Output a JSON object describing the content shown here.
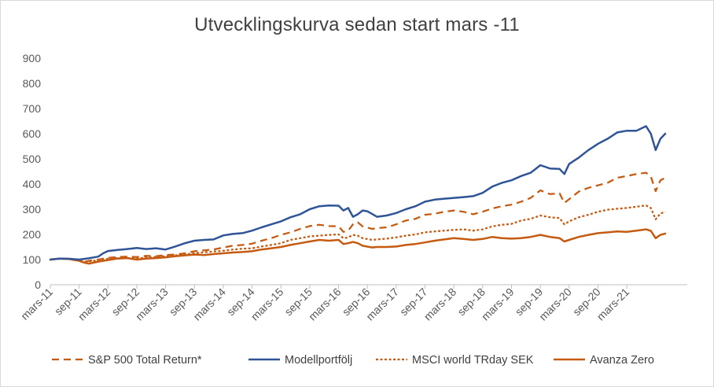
{
  "chart_data": {
    "type": "line",
    "title": "Utvecklingskurva sedan start mars -11",
    "xlabel": "",
    "ylabel": "",
    "ylim": [
      0,
      900
    ],
    "yticks": [
      0,
      100,
      200,
      300,
      400,
      500,
      600,
      700,
      800,
      900
    ],
    "grid": false,
    "legend_position": "bottom",
    "x_tick_labels": [
      "mars-11",
      "sep-11",
      "mars-12",
      "sep-12",
      "mars-13",
      "sep-13",
      "mars-14",
      "sep-14",
      "mars-15",
      "sep-15",
      "mars-16",
      "sep-16",
      "mars-17",
      "sep-17",
      "mars-18",
      "sep-18",
      "mars-19",
      "sep-19",
      "mars-20",
      "sep-20",
      "mars-21"
    ],
    "x_range_months": [
      0,
      128
    ],
    "series": [
      {
        "name": "S&P 500 Total Return*",
        "color": "#c55a11",
        "style": "dashed",
        "points": [
          [
            0,
            100
          ],
          [
            2,
            104
          ],
          [
            4,
            103
          ],
          [
            6,
            97
          ],
          [
            7,
            90
          ],
          [
            8,
            95
          ],
          [
            10,
            100
          ],
          [
            12,
            107
          ],
          [
            14,
            110
          ],
          [
            16,
            112
          ],
          [
            18,
            110
          ],
          [
            20,
            115
          ],
          [
            22,
            113
          ],
          [
            24,
            118
          ],
          [
            26,
            120
          ],
          [
            28,
            125
          ],
          [
            30,
            133
          ],
          [
            32,
            137
          ],
          [
            34,
            140
          ],
          [
            36,
            148
          ],
          [
            38,
            155
          ],
          [
            40,
            158
          ],
          [
            42,
            163
          ],
          [
            44,
            175
          ],
          [
            46,
            185
          ],
          [
            48,
            198
          ],
          [
            50,
            208
          ],
          [
            52,
            222
          ],
          [
            54,
            233
          ],
          [
            56,
            238
          ],
          [
            58,
            233
          ],
          [
            60,
            232
          ],
          [
            61,
            210
          ],
          [
            62,
            215
          ],
          [
            63,
            240
          ],
          [
            64,
            248
          ],
          [
            65,
            232
          ],
          [
            67,
            222
          ],
          [
            68,
            225
          ],
          [
            70,
            228
          ],
          [
            72,
            240
          ],
          [
            74,
            255
          ],
          [
            76,
            262
          ],
          [
            78,
            278
          ],
          [
            80,
            282
          ],
          [
            82,
            290
          ],
          [
            84,
            295
          ],
          [
            86,
            290
          ],
          [
            88,
            280
          ],
          [
            90,
            290
          ],
          [
            92,
            303
          ],
          [
            94,
            312
          ],
          [
            96,
            318
          ],
          [
            98,
            330
          ],
          [
            100,
            345
          ],
          [
            102,
            375
          ],
          [
            104,
            360
          ],
          [
            106,
            363
          ],
          [
            107,
            325
          ],
          [
            108,
            340
          ],
          [
            110,
            370
          ],
          [
            112,
            385
          ],
          [
            114,
            395
          ],
          [
            116,
            405
          ],
          [
            118,
            425
          ],
          [
            120,
            432
          ],
          [
            122,
            440
          ],
          [
            124,
            445
          ],
          [
            125,
            430
          ],
          [
            126,
            372
          ],
          [
            127,
            415
          ],
          [
            128,
            425
          ]
        ]
      },
      {
        "name": "Modellportfölj",
        "color": "#2f5597",
        "style": "solid",
        "points": [
          [
            0,
            100
          ],
          [
            2,
            104
          ],
          [
            4,
            103
          ],
          [
            6,
            100
          ],
          [
            8,
            105
          ],
          [
            10,
            112
          ],
          [
            11,
            125
          ],
          [
            12,
            134
          ],
          [
            14,
            138
          ],
          [
            16,
            142
          ],
          [
            18,
            146
          ],
          [
            20,
            142
          ],
          [
            22,
            145
          ],
          [
            24,
            140
          ],
          [
            26,
            152
          ],
          [
            28,
            165
          ],
          [
            30,
            175
          ],
          [
            32,
            178
          ],
          [
            34,
            180
          ],
          [
            36,
            196
          ],
          [
            38,
            202
          ],
          [
            40,
            205
          ],
          [
            42,
            215
          ],
          [
            44,
            228
          ],
          [
            46,
            240
          ],
          [
            48,
            252
          ],
          [
            50,
            268
          ],
          [
            52,
            280
          ],
          [
            54,
            300
          ],
          [
            56,
            312
          ],
          [
            58,
            315
          ],
          [
            60,
            314
          ],
          [
            61,
            295
          ],
          [
            62,
            305
          ],
          [
            63,
            270
          ],
          [
            64,
            280
          ],
          [
            65,
            295
          ],
          [
            66,
            292
          ],
          [
            68,
            270
          ],
          [
            70,
            275
          ],
          [
            72,
            285
          ],
          [
            74,
            300
          ],
          [
            76,
            312
          ],
          [
            78,
            330
          ],
          [
            80,
            338
          ],
          [
            82,
            342
          ],
          [
            84,
            345
          ],
          [
            86,
            348
          ],
          [
            88,
            352
          ],
          [
            90,
            365
          ],
          [
            92,
            390
          ],
          [
            94,
            405
          ],
          [
            96,
            415
          ],
          [
            98,
            432
          ],
          [
            100,
            445
          ],
          [
            102,
            475
          ],
          [
            104,
            462
          ],
          [
            106,
            460
          ],
          [
            107,
            440
          ],
          [
            108,
            480
          ],
          [
            110,
            505
          ],
          [
            112,
            535
          ],
          [
            114,
            560
          ],
          [
            116,
            580
          ],
          [
            118,
            605
          ],
          [
            120,
            612
          ],
          [
            122,
            612
          ],
          [
            124,
            630
          ],
          [
            125,
            600
          ],
          [
            126,
            535
          ],
          [
            127,
            580
          ],
          [
            128,
            600
          ]
        ]
      },
      {
        "name": "MSCI world TRday SEK",
        "color": "#c55a11",
        "style": "dotted",
        "points": [
          [
            0,
            100
          ],
          [
            2,
            104
          ],
          [
            4,
            102
          ],
          [
            6,
            96
          ],
          [
            7,
            92
          ],
          [
            8,
            93
          ],
          [
            10,
            97
          ],
          [
            12,
            103
          ],
          [
            14,
            106
          ],
          [
            16,
            105
          ],
          [
            18,
            104
          ],
          [
            20,
            108
          ],
          [
            22,
            110
          ],
          [
            24,
            113
          ],
          [
            26,
            117
          ],
          [
            28,
            120
          ],
          [
            30,
            125
          ],
          [
            32,
            129
          ],
          [
            34,
            132
          ],
          [
            36,
            135
          ],
          [
            38,
            140
          ],
          [
            40,
            143
          ],
          [
            42,
            145
          ],
          [
            44,
            152
          ],
          [
            46,
            158
          ],
          [
            48,
            165
          ],
          [
            50,
            178
          ],
          [
            52,
            185
          ],
          [
            54,
            192
          ],
          [
            56,
            195
          ],
          [
            58,
            198
          ],
          [
            60,
            200
          ],
          [
            61,
            185
          ],
          [
            62,
            188
          ],
          [
            63,
            198
          ],
          [
            64,
            195
          ],
          [
            65,
            185
          ],
          [
            67,
            178
          ],
          [
            68,
            180
          ],
          [
            70,
            183
          ],
          [
            72,
            188
          ],
          [
            74,
            195
          ],
          [
            76,
            200
          ],
          [
            78,
            208
          ],
          [
            80,
            212
          ],
          [
            82,
            215
          ],
          [
            84,
            218
          ],
          [
            86,
            220
          ],
          [
            88,
            215
          ],
          [
            90,
            220
          ],
          [
            92,
            232
          ],
          [
            94,
            238
          ],
          [
            96,
            242
          ],
          [
            98,
            255
          ],
          [
            100,
            262
          ],
          [
            102,
            275
          ],
          [
            104,
            268
          ],
          [
            106,
            265
          ],
          [
            107,
            240
          ],
          [
            108,
            252
          ],
          [
            110,
            268
          ],
          [
            112,
            278
          ],
          [
            114,
            290
          ],
          [
            116,
            298
          ],
          [
            118,
            302
          ],
          [
            120,
            305
          ],
          [
            122,
            310
          ],
          [
            124,
            315
          ],
          [
            125,
            305
          ],
          [
            126,
            260
          ],
          [
            127,
            283
          ],
          [
            128,
            290
          ]
        ]
      },
      {
        "name": "Avanza Zero",
        "color": "#c55a11",
        "style": "solid-thick",
        "points": [
          [
            0,
            100
          ],
          [
            2,
            104
          ],
          [
            4,
            102
          ],
          [
            6,
            95
          ],
          [
            7,
            88
          ],
          [
            8,
            84
          ],
          [
            10,
            92
          ],
          [
            12,
            98
          ],
          [
            14,
            104
          ],
          [
            16,
            106
          ],
          [
            18,
            100
          ],
          [
            20,
            104
          ],
          [
            22,
            106
          ],
          [
            24,
            109
          ],
          [
            26,
            113
          ],
          [
            28,
            117
          ],
          [
            30,
            120
          ],
          [
            32,
            118
          ],
          [
            34,
            122
          ],
          [
            36,
            125
          ],
          [
            38,
            128
          ],
          [
            40,
            130
          ],
          [
            42,
            133
          ],
          [
            44,
            140
          ],
          [
            46,
            145
          ],
          [
            48,
            150
          ],
          [
            50,
            158
          ],
          [
            52,
            165
          ],
          [
            54,
            172
          ],
          [
            56,
            178
          ],
          [
            58,
            175
          ],
          [
            60,
            178
          ],
          [
            61,
            162
          ],
          [
            62,
            165
          ],
          [
            63,
            170
          ],
          [
            64,
            165
          ],
          [
            65,
            155
          ],
          [
            67,
            148
          ],
          [
            68,
            150
          ],
          [
            70,
            150
          ],
          [
            72,
            152
          ],
          [
            74,
            158
          ],
          [
            76,
            162
          ],
          [
            78,
            168
          ],
          [
            80,
            175
          ],
          [
            82,
            180
          ],
          [
            84,
            185
          ],
          [
            86,
            182
          ],
          [
            88,
            178
          ],
          [
            90,
            182
          ],
          [
            92,
            190
          ],
          [
            94,
            185
          ],
          [
            96,
            183
          ],
          [
            98,
            185
          ],
          [
            100,
            190
          ],
          [
            102,
            198
          ],
          [
            104,
            190
          ],
          [
            106,
            185
          ],
          [
            107,
            172
          ],
          [
            108,
            178
          ],
          [
            110,
            190
          ],
          [
            112,
            198
          ],
          [
            114,
            205
          ],
          [
            116,
            208
          ],
          [
            118,
            212
          ],
          [
            120,
            210
          ],
          [
            122,
            215
          ],
          [
            124,
            220
          ],
          [
            125,
            214
          ],
          [
            126,
            185
          ],
          [
            127,
            198
          ],
          [
            128,
            203
          ]
        ]
      }
    ]
  }
}
